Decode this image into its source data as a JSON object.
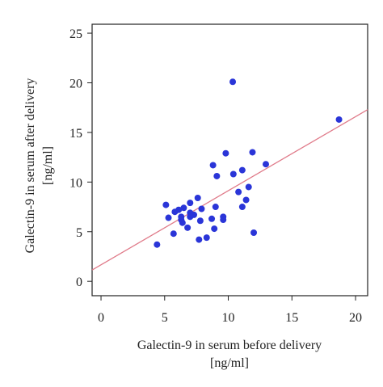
{
  "chart_data": {
    "type": "scatter",
    "x_label": [
      "Galectin-9 in serum before delivery",
      "[ng/ml]"
    ],
    "y_label": [
      "Galectin-9 in serum after delivery",
      "[ng/ml]"
    ],
    "xlim": [
      -0.7,
      20.95
    ],
    "ylim": [
      -1.45,
      25.9
    ],
    "xticks": [
      0,
      5,
      10,
      15,
      20
    ],
    "yticks": [
      0,
      5,
      10,
      15,
      20,
      25
    ],
    "series": [
      {
        "color": "#2a35d8",
        "x": [
          10.35,
          18.7,
          9.8,
          11.9,
          12.95,
          8.8,
          9.1,
          10.4,
          11.1,
          10.8,
          11.6,
          11.4,
          11.1,
          12.0,
          9.0,
          8.7,
          9.6,
          9.6,
          8.9,
          8.3,
          7.7,
          7.6,
          7.9,
          7.0,
          6.5,
          6.1,
          6.3,
          6.3,
          5.3,
          5.1,
          5.8,
          5.7,
          7.0,
          7.3,
          7.0,
          6.8,
          7.8,
          6.4,
          4.4
        ],
        "values": [
          20.1,
          16.3,
          12.9,
          13.0,
          11.8,
          11.7,
          10.6,
          10.8,
          11.2,
          9.0,
          9.5,
          8.2,
          7.5,
          4.9,
          7.5,
          6.3,
          6.5,
          6.2,
          5.3,
          4.4,
          4.2,
          8.4,
          7.3,
          7.9,
          7.4,
          7.2,
          6.5,
          6.2,
          6.4,
          7.7,
          7.0,
          4.8,
          6.9,
          6.7,
          6.5,
          5.4,
          6.1,
          5.9,
          3.7
        ]
      }
    ],
    "trend_line": {
      "color": "#e07b8a",
      "x": [
        -0.7,
        20.95
      ],
      "y": [
        1.14,
        17.3
      ]
    }
  }
}
